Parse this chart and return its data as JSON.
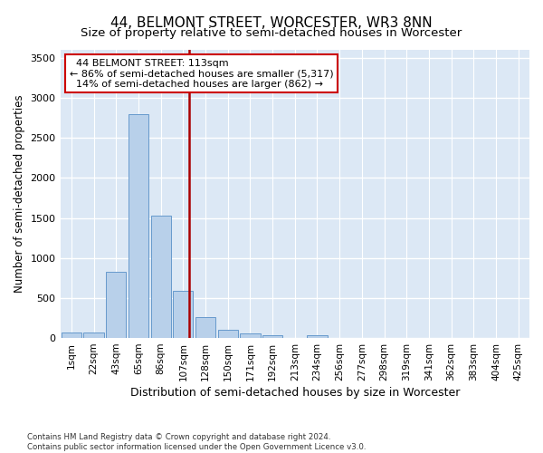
{
  "title": "44, BELMONT STREET, WORCESTER, WR3 8NN",
  "subtitle": "Size of property relative to semi-detached houses in Worcester",
  "xlabel": "Distribution of semi-detached houses by size in Worcester",
  "ylabel": "Number of semi-detached properties",
  "bar_labels": [
    "1sqm",
    "22sqm",
    "43sqm",
    "65sqm",
    "86sqm",
    "107sqm",
    "128sqm",
    "150sqm",
    "171sqm",
    "192sqm",
    "213sqm",
    "234sqm",
    "256sqm",
    "277sqm",
    "298sqm",
    "319sqm",
    "341sqm",
    "362sqm",
    "383sqm",
    "404sqm",
    "425sqm"
  ],
  "bar_values": [
    65,
    65,
    830,
    2800,
    1530,
    590,
    260,
    105,
    60,
    30,
    5,
    30,
    0,
    0,
    0,
    0,
    0,
    0,
    0,
    0,
    0
  ],
  "bar_color": "#b8d0ea",
  "bar_edge_color": "#6699cc",
  "property_line_label": "44 BELMONT STREET: 113sqm",
  "annotation_smaller": "← 86% of semi-detached houses are smaller (5,317)",
  "annotation_larger": "14% of semi-detached houses are larger (862) →",
  "line_color": "#aa0000",
  "box_edge_color": "#cc0000",
  "ylim": [
    0,
    3600
  ],
  "yticks": [
    0,
    500,
    1000,
    1500,
    2000,
    2500,
    3000,
    3500
  ],
  "background_color": "#dce8f5",
  "grid_color": "#ffffff",
  "footnote": "Contains HM Land Registry data © Crown copyright and database right 2024.\nContains public sector information licensed under the Open Government Licence v3.0.",
  "title_fontsize": 11,
  "subtitle_fontsize": 9.5,
  "xlabel_fontsize": 9,
  "ylabel_fontsize": 8.5,
  "annotation_fontsize": 8,
  "tick_fontsize": 7.5
}
